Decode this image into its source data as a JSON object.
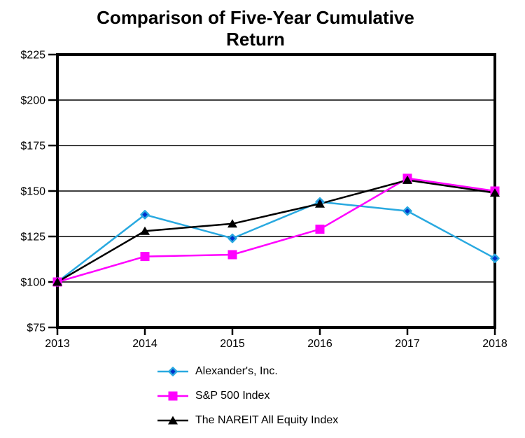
{
  "title": {
    "line1": "Comparison of Five-Year Cumulative",
    "line2": "Return"
  },
  "chart_data": {
    "type": "line",
    "x": [
      "2013",
      "2014",
      "2015",
      "2016",
      "2017",
      "2018"
    ],
    "series": [
      {
        "name": "Alexander's, Inc.",
        "values": [
          100,
          137,
          124,
          144,
          139,
          113
        ],
        "color": "#29A9E0",
        "marker": "diamond",
        "marker_fill": "#0033CC"
      },
      {
        "name": "S&P 500 Index",
        "values": [
          100,
          114,
          115,
          129,
          157,
          150
        ],
        "color": "#FF00FF",
        "marker": "square",
        "marker_fill": "#FF00FF"
      },
      {
        "name": "The NAREIT All Equity Index",
        "values": [
          100,
          128,
          132,
          143,
          156,
          149
        ],
        "color": "#000000",
        "marker": "triangle",
        "marker_fill": "#000000"
      }
    ],
    "title": "Comparison of Five-Year Cumulative Return",
    "xlabel": "",
    "ylabel": "",
    "ylim": [
      75,
      225
    ],
    "ytick_step": 25,
    "ytick_labels": [
      "$225",
      "$200",
      "$175",
      "$150",
      "$125",
      "$100",
      "$75"
    ],
    "currency_prefix": "$",
    "grid": true,
    "legend_position": "bottom",
    "frame_color": "#000000",
    "background": "#FFFFFF"
  }
}
